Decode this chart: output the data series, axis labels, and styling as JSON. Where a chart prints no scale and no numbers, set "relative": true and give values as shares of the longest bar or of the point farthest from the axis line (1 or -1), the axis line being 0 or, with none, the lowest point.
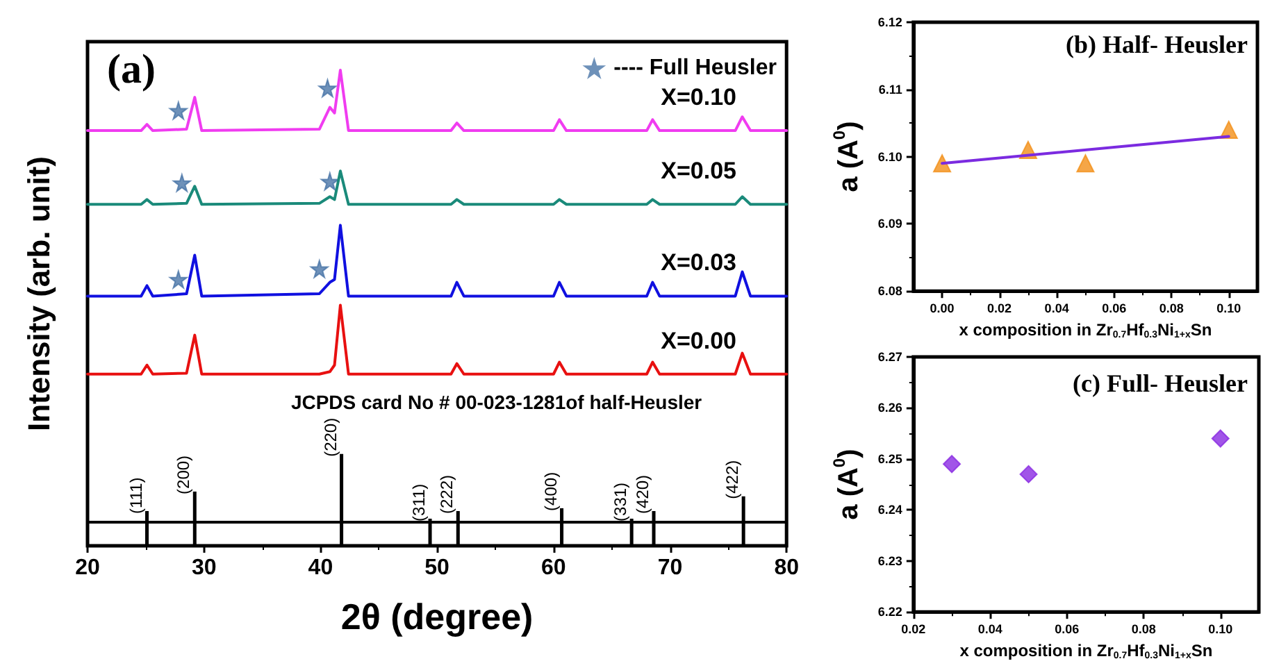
{
  "chart_data": [
    {
      "type": "line",
      "title": "(a)",
      "xlabel": "2θ (degree)",
      "ylabel": "Intensity (arb. unit)",
      "relative": true,
      "xlim": [
        20,
        80
      ],
      "xticks": [
        20,
        30,
        40,
        50,
        60,
        70,
        80
      ],
      "tick_labels": "x",
      "marker": "none",
      "legend": "top right",
      "series": [
        {
          "name": "X=0.10",
          "color": "#f03cf0",
          "x": [
            20,
            24.6,
            25.1,
            25.6,
            28.5,
            29.2,
            29.8,
            39.9,
            40.8,
            41.2,
            41.7,
            42.4,
            51.2,
            51.7,
            52.3,
            60.0,
            60.5,
            61.1,
            68.0,
            68.5,
            69.1,
            75.6,
            76.2,
            76.9,
            80
          ],
          "values": [
            0.873,
            0.873,
            0.886,
            0.873,
            0.876,
            0.943,
            0.873,
            0.876,
            0.922,
            0.91,
            1,
            0.873,
            0.873,
            0.889,
            0.873,
            0.873,
            0.896,
            0.873,
            0.873,
            0.896,
            0.873,
            0.873,
            0.902,
            0.873,
            0.873
          ]
        },
        {
          "name": "X=0.05",
          "color": "#1a8a7a",
          "x": [
            20,
            24.6,
            25.1,
            25.6,
            28.5,
            29.2,
            29.8,
            39.9,
            40.8,
            41.2,
            41.7,
            42.4,
            51.2,
            51.7,
            52.3,
            60.0,
            60.5,
            61.1,
            68.0,
            68.5,
            69.1,
            75.6,
            76.2,
            76.9,
            80
          ],
          "values": [
            0.718,
            0.718,
            0.728,
            0.718,
            0.72,
            0.756,
            0.718,
            0.72,
            0.734,
            0.728,
            0.788,
            0.718,
            0.718,
            0.728,
            0.718,
            0.718,
            0.728,
            0.718,
            0.718,
            0.728,
            0.718,
            0.718,
            0.734,
            0.718,
            0.718
          ]
        },
        {
          "name": "X=0.03",
          "color": "#1010e0",
          "x": [
            20,
            24.6,
            25.1,
            25.6,
            28.5,
            29.2,
            29.8,
            39.9,
            40.8,
            41.2,
            41.7,
            42.4,
            51.2,
            51.7,
            52.3,
            60.0,
            60.5,
            61.1,
            68.0,
            68.5,
            69.1,
            75.6,
            76.2,
            76.9,
            80
          ],
          "values": [
            0.525,
            0.525,
            0.547,
            0.525,
            0.53,
            0.611,
            0.525,
            0.53,
            0.554,
            0.56,
            0.674,
            0.525,
            0.525,
            0.554,
            0.525,
            0.525,
            0.554,
            0.525,
            0.525,
            0.554,
            0.525,
            0.525,
            0.576,
            0.525,
            0.525
          ]
        },
        {
          "name": "X=0.00",
          "color": "#e81010",
          "x": [
            20,
            24.6,
            25.1,
            25.6,
            28.5,
            29.2,
            29.8,
            39.9,
            40.8,
            41.2,
            41.7,
            42.4,
            51.2,
            51.7,
            52.3,
            60.0,
            60.5,
            61.1,
            68.0,
            68.5,
            69.1,
            75.6,
            76.2,
            76.9,
            80
          ],
          "values": [
            0.361,
            0.361,
            0.38,
            0.361,
            0.363,
            0.443,
            0.361,
            0.361,
            0.366,
            0.38,
            0.506,
            0.361,
            0.361,
            0.383,
            0.361,
            0.361,
            0.386,
            0.361,
            0.361,
            0.386,
            0.361,
            0.361,
            0.405,
            0.361,
            0.361
          ]
        },
        {
          "type": "bar",
          "color": "#000000",
          "x": [
            25.1,
            29.2,
            41.8,
            49.4,
            51.8,
            60.7,
            66.7,
            68.6,
            76.3
          ],
          "values": [
            0.073,
            0.114,
            0.193,
            0.057,
            0.073,
            0.079,
            0.057,
            0.073,
            0.104
          ]
        },
        {
          "type": "scatter",
          "name": "---- Full Heusler",
          "color": "#4a76a8",
          "marker": "star",
          "x": [
            27.8,
            40.6,
            28.1,
            40.8,
            27.8,
            39.9
          ],
          "values": [
            0.915,
            0.962,
            0.763,
            0.766,
            0.56,
            0.582
          ]
        }
      ],
      "ref_lines": [
        {
          "axis": "y",
          "value": 0.051,
          "color": "#000000"
        }
      ],
      "annotations": [
        "JCPDS card No # 00-023-1281of half-Heusler",
        {
          "text": "(111)",
          "x": 25.1,
          "y": 0.073
        },
        {
          "text": "(200)",
          "x": 29.2,
          "y": 0.114
        },
        {
          "text": "(220)",
          "x": 41.8,
          "y": 0.193
        },
        {
          "text": "(311)",
          "x": 49.4,
          "y": 0.057
        },
        {
          "text": "(222)",
          "x": 51.8,
          "y": 0.073
        },
        {
          "text": "(400)",
          "x": 60.7,
          "y": 0.079
        },
        {
          "text": "(331)",
          "x": 66.7,
          "y": 0.057
        },
        {
          "text": "(420)",
          "x": 68.6,
          "y": 0.073
        },
        {
          "text": "(422)",
          "x": 76.3,
          "y": 0.104
        }
      ]
    },
    {
      "type": "scatter",
      "title": "(b) Half- Heusler",
      "xlabel": "x composition in Zr$_{0.7}$Hf$_{0.3}$Ni$_{1+x}$Sn",
      "ylabel": "a (A$^{0}$)",
      "xlim": [
        -0.01,
        0.11
      ],
      "xticks": [
        {
          "value": 0,
          "label": "0.00"
        },
        {
          "value": 0.02,
          "label": "0.02"
        },
        {
          "value": 0.04,
          "label": "0.04"
        },
        {
          "value": 0.06,
          "label": "0.06"
        },
        {
          "value": 0.08,
          "label": "0.08"
        },
        {
          "value": 0.1,
          "label": "0.10"
        }
      ],
      "ylim": [
        6.08,
        6.12
      ],
      "yticks": [
        6.08,
        6.09,
        {
          "value": 6.1,
          "label": "6.10"
        },
        6.11,
        6.12
      ],
      "series": [
        {
          "type": "scatter",
          "color": "#f39019",
          "marker": "triangle",
          "x": [
            0,
            0.03,
            0.05,
            0.1
          ],
          "values": [
            6.099,
            6.101,
            6.099,
            6.104
          ]
        },
        {
          "type": "line",
          "color": "#7b2be0",
          "marker": "none",
          "x": [
            0,
            0.1
          ],
          "values": [
            6.099,
            6.103
          ]
        }
      ]
    },
    {
      "type": "scatter",
      "title": "(c) Full- Heusler",
      "xlabel": "x composition in Zr$_{0.7}$Hf$_{0.3}$Ni$_{1+x}$Sn",
      "ylabel": "a (A$^{0}$)",
      "xlim": [
        0.02,
        0.11
      ],
      "xticks": [
        0.02,
        0.04,
        0.06,
        0.08,
        {
          "value": 0.1,
          "label": "0.10"
        }
      ],
      "ylim": [
        6.22,
        6.27
      ],
      "yticks": [
        6.22,
        6.23,
        6.24,
        6.25,
        6.26,
        6.27
      ],
      "series": [
        {
          "type": "scatter",
          "color": "#8a2be2",
          "marker": "diamond",
          "x": [
            0.03,
            0.05,
            0.1
          ],
          "values": [
            6.249,
            6.247,
            6.254
          ]
        }
      ]
    }
  ]
}
